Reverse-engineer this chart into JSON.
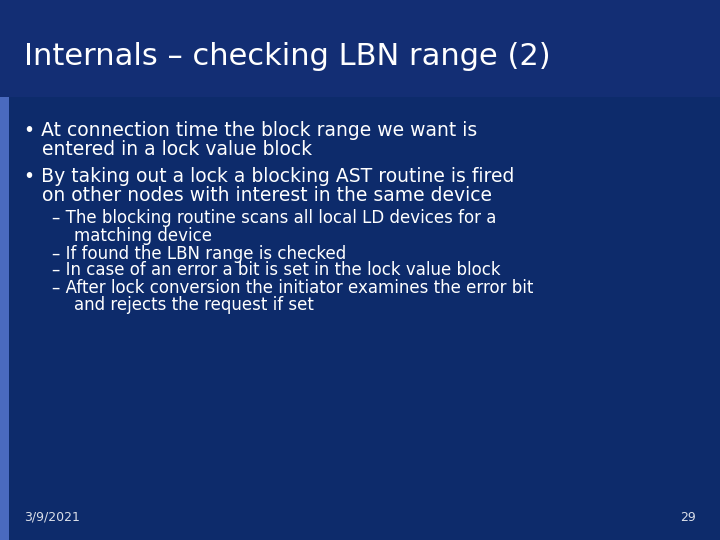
{
  "title": "Internals – checking LBN range (2)",
  "background_color": "#0d2b6b",
  "left_bar_color": "#4a6abf",
  "title_color": "#ffffff",
  "text_color": "#ffffff",
  "footer_date": "3/9/2021",
  "footer_page": "29",
  "title_fontsize": 22,
  "bullet_fontsize": 13.5,
  "sub_fontsize": 12,
  "footer_fontsize": 9
}
